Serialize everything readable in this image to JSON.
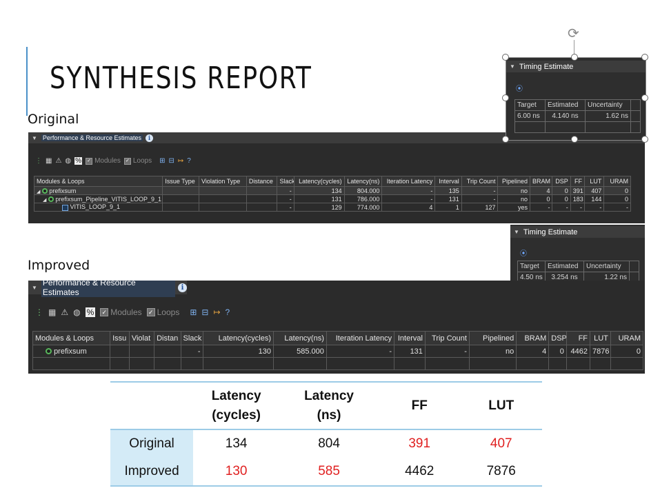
{
  "slide": {
    "title": "SYNTHESIS REPORT",
    "original_label": "Original",
    "improved_label": "Improved"
  },
  "orig_panel": {
    "title": "Performance & Resource Estimates",
    "modules_label": "Modules",
    "loops_label": "Loops",
    "headers": [
      "Modules & Loops",
      "Issue Type",
      "Violation Type",
      "Distance",
      "Slack",
      "Latency(cycles)",
      "Latency(ns)",
      "Iteration Latency",
      "Interval",
      "Trip Count",
      "Pipelined",
      "BRAM",
      "DSP",
      "FF",
      "LUT",
      "URAM"
    ],
    "rows": [
      [
        "prefixsum",
        "",
        "",
        "",
        "-",
        "134",
        "804.000",
        "-",
        "135",
        "-",
        "no",
        "4",
        "0",
        "391",
        "407",
        "0"
      ],
      [
        "prefixsum_Pipeline_VITIS_LOOP_9_1",
        "",
        "",
        "",
        "-",
        "131",
        "786.000",
        "-",
        "131",
        "-",
        "no",
        "0",
        "0",
        "183",
        "144",
        "0"
      ],
      [
        "VITIS_LOOP_9_1",
        "",
        "",
        "",
        "-",
        "129",
        "774.000",
        "4",
        "1",
        "127",
        "yes",
        "-",
        "-",
        "-",
        "-",
        "-"
      ]
    ]
  },
  "impr_panel": {
    "title": "Performance & Resource Estimates",
    "modules_label": "Modules",
    "loops_label": "Loops",
    "headers": [
      "Modules & Loops",
      "Issu",
      "Violat",
      "Distan",
      "Slack",
      "Latency(cycles)",
      "Latency(ns)",
      "Iteration Latency",
      "Interval",
      "Trip Count",
      "Pipelined",
      "BRAM",
      "DSP",
      "FF",
      "LUT",
      "URAM"
    ],
    "rows": [
      [
        "prefixsum",
        "",
        "",
        "",
        "-",
        "130",
        "585.000",
        "-",
        "131",
        "-",
        "no",
        "4",
        "0",
        "4462",
        "7876",
        "0"
      ]
    ]
  },
  "timing_orig": {
    "title": "Timing Estimate",
    "headers": [
      "Target",
      "Estimated",
      "Uncertainty"
    ],
    "values": [
      "6.00 ns",
      "4.140 ns",
      "1.62 ns"
    ]
  },
  "timing_impr": {
    "title": "Timing Estimate",
    "headers": [
      "Target",
      "Estimated",
      "Uncertainty"
    ],
    "values": [
      "4.50 ns",
      "3.254 ns",
      "1.22 ns"
    ]
  },
  "comparison": {
    "headers": [
      "",
      "Latency (cycles)",
      "Latency (ns)",
      "FF",
      "LUT"
    ],
    "rows": [
      {
        "label": "Original",
        "cells": [
          "134",
          "804",
          "391",
          "407"
        ],
        "highlight": [
          false,
          false,
          true,
          true
        ]
      },
      {
        "label": "Improved",
        "cells": [
          "130",
          "585",
          "4462",
          "7876"
        ],
        "highlight": [
          true,
          true,
          false,
          false
        ]
      }
    ]
  },
  "colors": {
    "accent": "#4a90c8",
    "highlight": "#e02020",
    "rowhead_bg": "#d4ebf7",
    "panel_bg": "#2b2b2b"
  }
}
